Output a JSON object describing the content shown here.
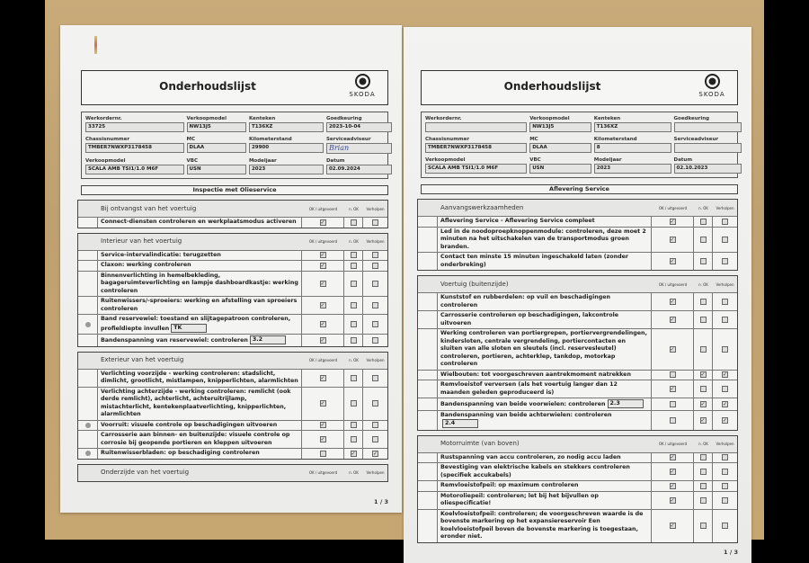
{
  "columns": {
    "ok": "OK / uitgevoerd",
    "nok": "n. OK",
    "fixed": "Verholpen"
  },
  "pages": [
    {
      "title": "Onderhoudslijst",
      "brand": "SKODA",
      "page_number": "1 / 3",
      "fields": [
        {
          "label": "Werkordernr.",
          "value": "33725"
        },
        {
          "label": "Verkoopmodel",
          "value": "NW13J5"
        },
        {
          "label": "Kenteken",
          "value": "T136XZ"
        },
        {
          "label": "Goedkeuring",
          "value": "2023-10-04"
        },
        {
          "label": "Chassisnummer",
          "value": "TMBER7NWXP3178458"
        },
        {
          "label": "MC",
          "value": "DLAA"
        },
        {
          "label": "Kilometerstand",
          "value": "29900"
        },
        {
          "label": "Serviceadviseur",
          "value": "Brian"
        },
        {
          "label": "Verkoopmodel",
          "value": "SCALA AMB TSI1/1.0 M6F"
        },
        {
          "label": "VBC",
          "value": "USN"
        },
        {
          "label": "Modeljaar",
          "value": "2023"
        },
        {
          "label": "Datum",
          "value": "02.09.2024"
        }
      ],
      "service_title": "Inspectie met Olieservice",
      "sections": [
        {
          "title": "Bij ontvangst van het voertuig",
          "items": [
            {
              "text": "Connect-diensten controleren en werkplaatsmodus activeren",
              "status": [
                true,
                false,
                false
              ]
            }
          ]
        },
        {
          "title": "Interieur van het voertuig",
          "items": [
            {
              "text": "Service-intervalindicatie: terugzetten",
              "status": [
                true,
                false,
                false
              ]
            },
            {
              "text": "Claxon: werking controleren",
              "status": [
                true,
                false,
                false
              ]
            },
            {
              "text": "Binnenverlichting in hemelbekleding, bagageruimteverlichting en lampje dashboardkastje: werking controleren",
              "status": [
                true,
                false,
                false
              ]
            },
            {
              "text": "Ruitenwissers/-sproeiers: werking en afstelling van sproeiers controleren",
              "status": [
                true,
                false,
                false
              ]
            },
            {
              "text": "Band reservewiel: toestand en slijtagepatroon controleren, profieldiepte invullen",
              "input": "TK",
              "marker": true,
              "status": [
                true,
                false,
                false
              ]
            },
            {
              "text": "Bandenspanning van reservewiel: controleren",
              "input": "3.2",
              "status": [
                true,
                false,
                false
              ]
            }
          ]
        },
        {
          "title": "Exterieur van het voertuig",
          "items": [
            {
              "text": "Verlichting voorzijde - werking controleren: stadslicht, dimlicht, grootlicht, mistlampen, knipperlichten, alarmlichten",
              "status": [
                true,
                false,
                false
              ]
            },
            {
              "text": "Verlichting achterzijde - werking controleren: remlicht (ook derde remlicht), achterlicht, achteruitrijlamp, mistachterlicht, kentekenplaatverlichting, knipperlichten, alarmlichten",
              "status": [
                true,
                false,
                false
              ]
            },
            {
              "text": "Voorruit: visuele controle op beschadigingen uitvoeren",
              "marker": true,
              "status": [
                true,
                false,
                false
              ]
            },
            {
              "text": "Carrosserie aan binnen- en buitenzijde: visuele controle op corrosie bij geopende portieren en kleppen uitvoeren",
              "status": [
                true,
                false,
                false
              ]
            },
            {
              "text": "Ruitenwisserbladen: op beschadiging controleren",
              "marker": true,
              "status": [
                false,
                true,
                true
              ]
            }
          ]
        },
        {
          "title": "Onderzijde van het voertuig",
          "items": []
        }
      ]
    },
    {
      "title": "Onderhoudslijst",
      "brand": "SKODA",
      "page_number": "1 / 3",
      "fields": [
        {
          "label": "Werkordernr.",
          "value": ""
        },
        {
          "label": "Verkoopmodel",
          "value": "NW13J5"
        },
        {
          "label": "Kenteken",
          "value": "T136XZ"
        },
        {
          "label": "Goedkeuring",
          "value": ""
        },
        {
          "label": "Chassisnummer",
          "value": "TMBER7NWXP3178458"
        },
        {
          "label": "MC",
          "value": "DLAA"
        },
        {
          "label": "Kilometerstand",
          "value": "8"
        },
        {
          "label": "Serviceadviseur",
          "value": ""
        },
        {
          "label": "Verkoopmodel",
          "value": "SCALA AMB TSI1/1.0 M6F"
        },
        {
          "label": "VBC",
          "value": "USN"
        },
        {
          "label": "Modeljaar",
          "value": "2023"
        },
        {
          "label": "Datum",
          "value": "02.10.2023"
        }
      ],
      "service_title": "Aflevering Service",
      "sections": [
        {
          "title": "Aanvangswerkzaamheden",
          "items": [
            {
              "text": "Aflevering Service - Aflevering Service compleet",
              "status": [
                true,
                false,
                false
              ]
            },
            {
              "text": "Led in de noodoproepknoppenmodule: controleren, deze moet 2 minuten na het uitschakelen van de transportmodus groen branden.",
              "status": [
                true,
                false,
                false
              ]
            },
            {
              "text": "Contact ten minste 15 minuten ingeschakeld laten (zonder onderbreking)",
              "status": [
                true,
                false,
                false
              ]
            }
          ]
        },
        {
          "title": "Voertuig (buitenzijde)",
          "items": [
            {
              "text": "Kunststof en rubberdelen: op vuil en beschadigingen controleren",
              "status": [
                true,
                false,
                false
              ]
            },
            {
              "text": "Carrosserie controleren op beschadigingen, lakcontrole uitvoeren",
              "status": [
                true,
                false,
                false
              ]
            },
            {
              "text": "Werking controleren van portiergrepen, portiervergrendelingen, kindersloten, centrale vergrendeling, portiercontacten en sluiten van alle sloten en sleutels (incl. reservesleutel) controleren, portieren, achterklep, tankdop, motorkap controleren",
              "status": [
                true,
                false,
                false
              ]
            },
            {
              "text": "Wielbouten: tot voorgeschreven aantrekmoment natrekken",
              "status": [
                false,
                true,
                true
              ]
            },
            {
              "text": "Remvloeistof verversen (als het voertuig langer dan 12 maanden geleden geproduceerd is)",
              "status": [
                true,
                false,
                false
              ]
            },
            {
              "text": "Bandenspanning van beide voorwielen: controleren",
              "input": "2.3",
              "status": [
                false,
                true,
                true
              ]
            },
            {
              "text": "Bandenspanning van beide achterwielen: controleren",
              "input": "2.4",
              "status": [
                false,
                true,
                true
              ]
            }
          ]
        },
        {
          "title": "Motorruimte (van boven)",
          "items": [
            {
              "text": "Rustspanning van accu controleren, zo nodig accu laden",
              "status": [
                true,
                false,
                false
              ]
            },
            {
              "text": "Bevestiging van elektrische kabels en stekkers controleren (specifiek accukabels)",
              "status": [
                true,
                false,
                false
              ]
            },
            {
              "text": "Remvloeistofpeil: op maximum controleren",
              "status": [
                true,
                false,
                false
              ]
            },
            {
              "text": "Motoroliepeil: controleren; let bij het bijvullen op oliespecificatie!",
              "status": [
                true,
                false,
                false
              ]
            },
            {
              "text": "Koelvloeistofpeil: controleren; de voorgeschreven waarde is de bovenste markering op het expansiereservoir Een koelvloeistofpeil boven de bovenste markering is toegestaan, eronder niet.",
              "status": [
                true,
                false,
                false
              ]
            }
          ]
        }
      ]
    }
  ]
}
